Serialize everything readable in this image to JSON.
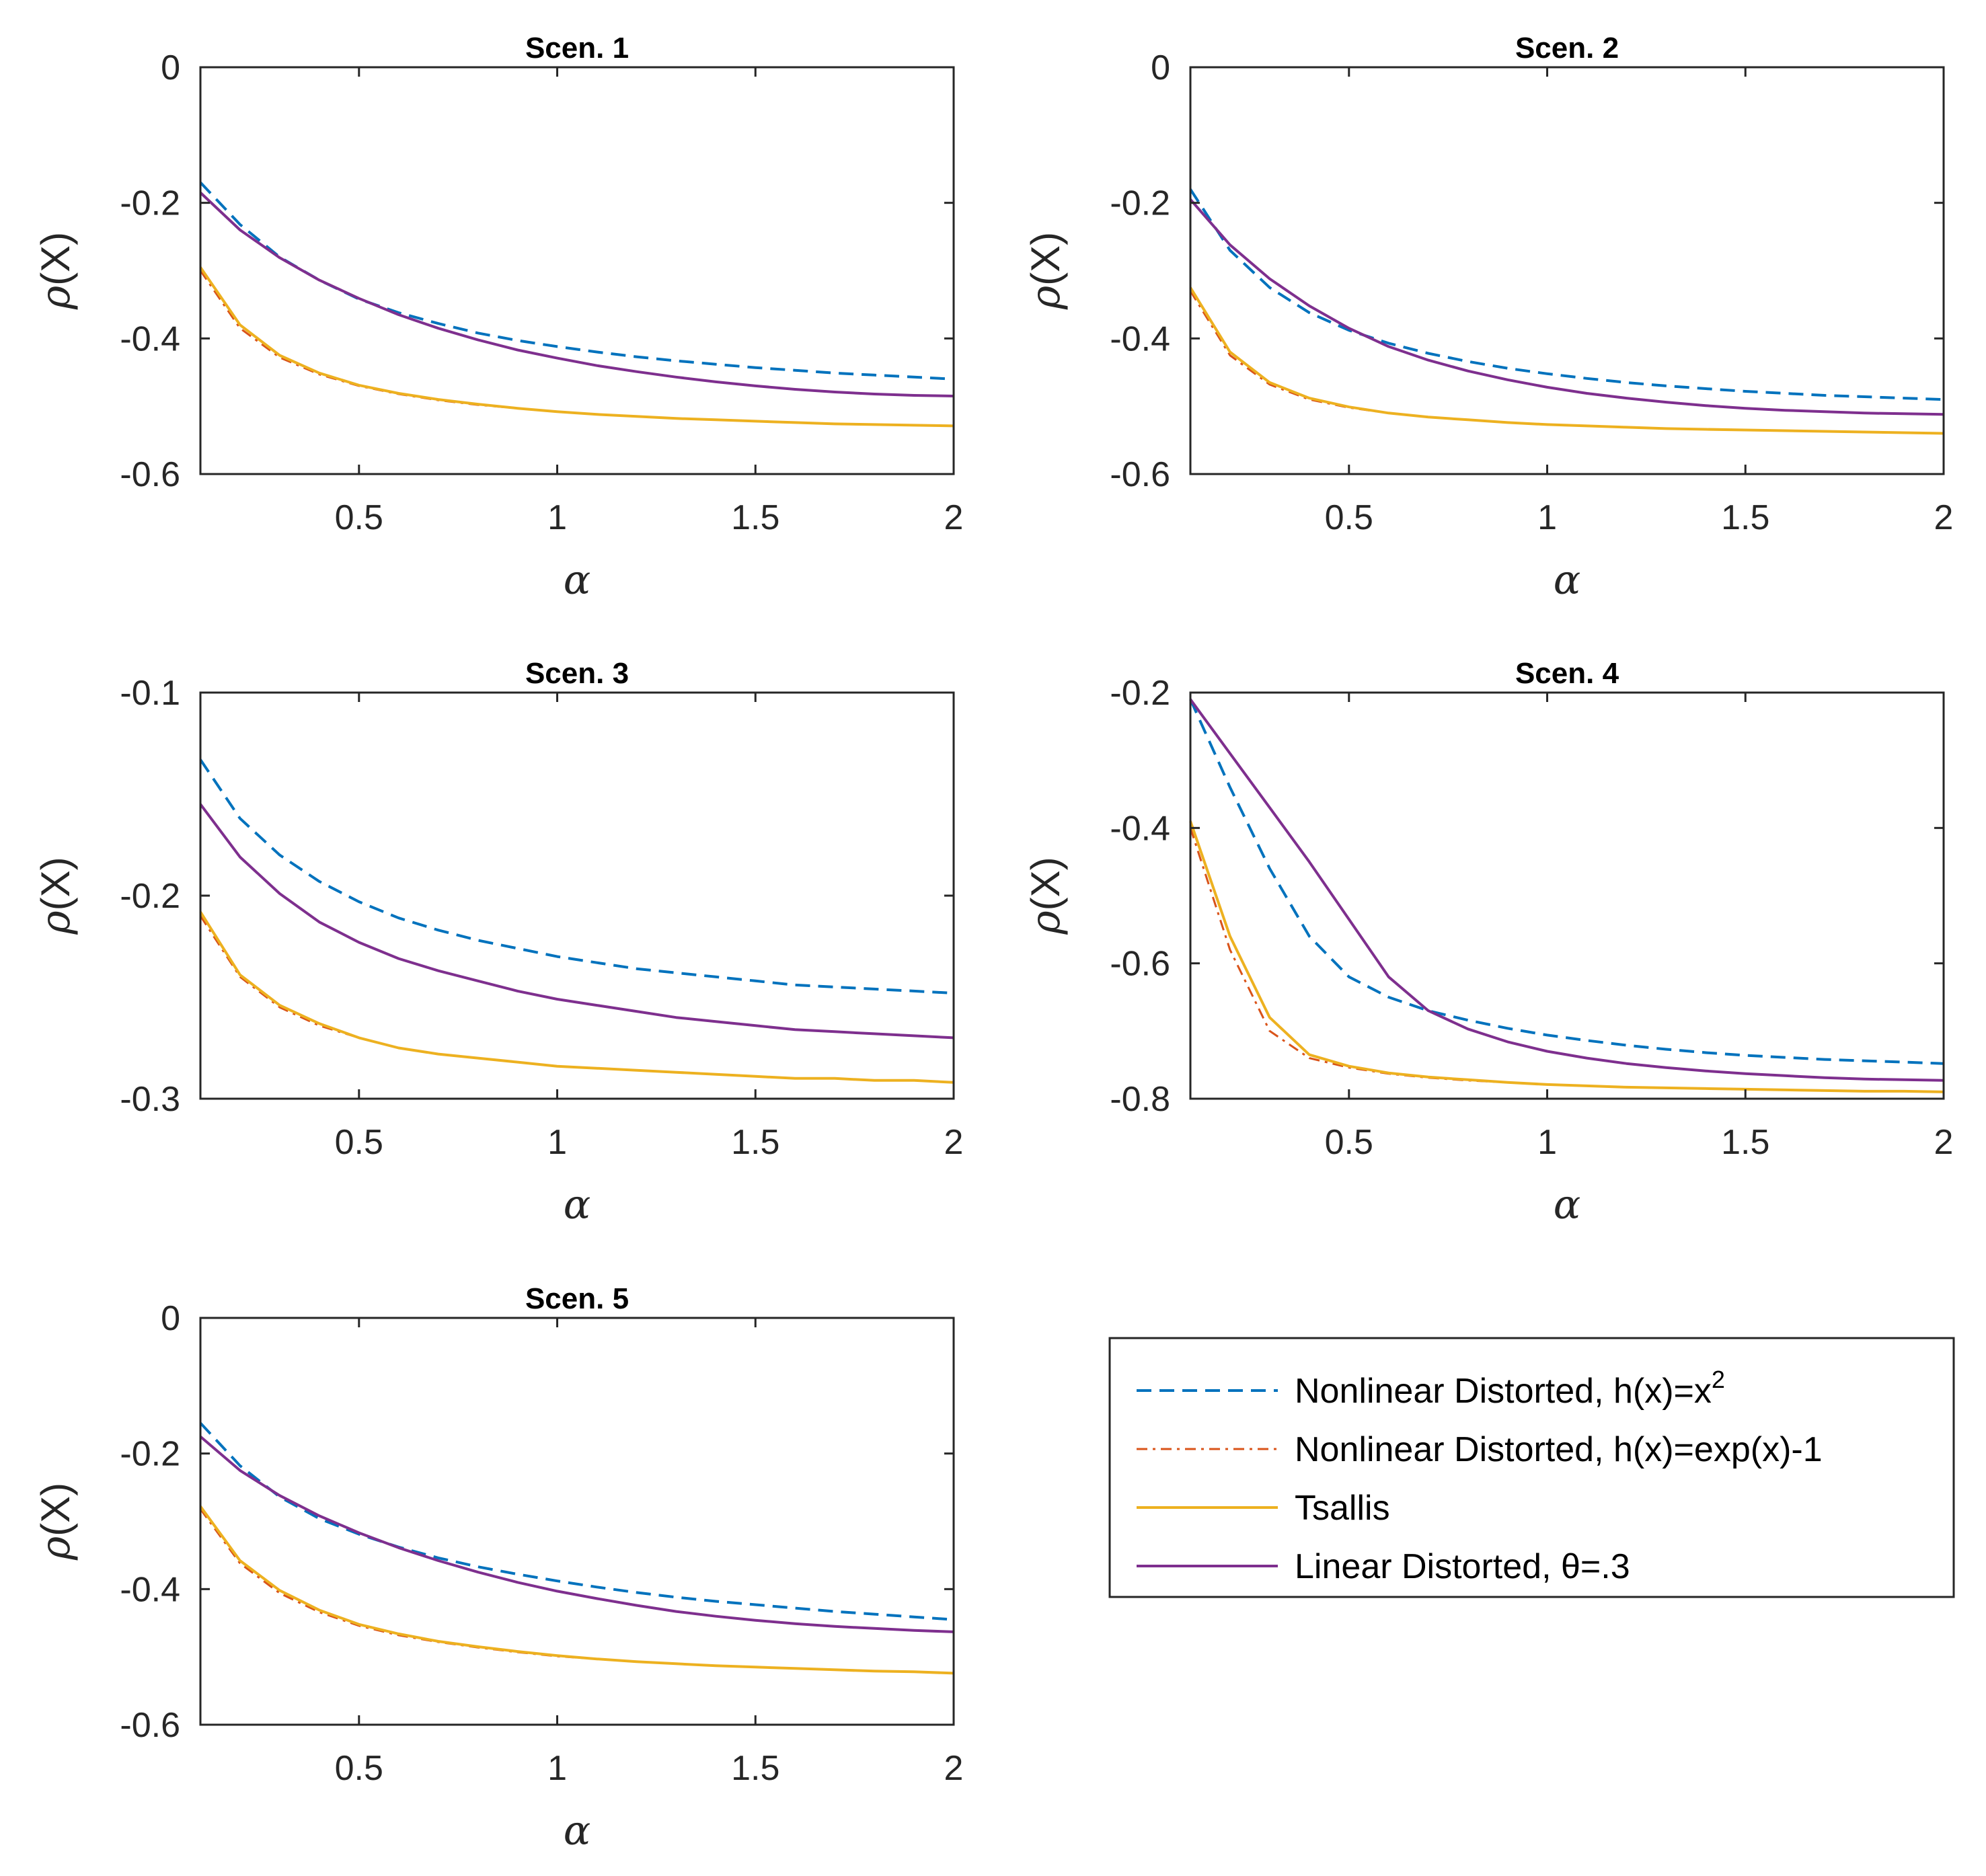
{
  "chart_data": {
    "type": "line",
    "xlabel": "α",
    "ylabel_prefix": "ρ",
    "ylabel_suffix": "(X)",
    "x": [
      0.1,
      0.2,
      0.3,
      0.4,
      0.5,
      0.6,
      0.7,
      0.8,
      0.9,
      1.0,
      1.1,
      1.2,
      1.3,
      1.4,
      1.5,
      1.6,
      1.7,
      1.8,
      1.9,
      2.0
    ],
    "x_ticks": [
      0.5,
      1,
      1.5,
      2
    ],
    "x_tick_labels": [
      "0.5",
      "1",
      "1.5",
      "2"
    ],
    "xlim": [
      0.1,
      2.0
    ],
    "legend": {
      "placement": "bottom-right",
      "entries": [
        {
          "key": "nl_sq",
          "text": "Nonlinear Distorted, h(x)=x",
          "superscript": "2",
          "color": "#0072BD",
          "style": "dashed"
        },
        {
          "key": "nl_exp",
          "text": "Nonlinear Distorted, h(x)=exp(x)-1",
          "superscript": "",
          "color": "#D95319",
          "style": "dashdot"
        },
        {
          "key": "tsallis",
          "text": "Tsallis",
          "superscript": "",
          "color": "#EDB120",
          "style": "solid"
        },
        {
          "key": "lin",
          "text": "Linear Distorted, θ=.3",
          "superscript": "",
          "color": "#7E2F8E",
          "style": "solid"
        }
      ]
    },
    "subplots": [
      {
        "title": "Scen. 1",
        "ylim": [
          -0.6,
          0
        ],
        "y_ticks": [
          -0.6,
          -0.4,
          -0.2,
          0
        ],
        "y_tick_labels": [
          "-0.6",
          "-0.4",
          "-0.2",
          "0"
        ],
        "series": [
          {
            "name": "nl_sq",
            "values": [
              -0.17,
              -0.232,
              -0.28,
              -0.314,
              -0.342,
              -0.362,
              -0.378,
              -0.392,
              -0.403,
              -0.412,
              -0.42,
              -0.427,
              -0.433,
              -0.438,
              -0.443,
              -0.447,
              -0.451,
              -0.454,
              -0.457,
              -0.46
            ]
          },
          {
            "name": "nl_exp",
            "values": [
              -0.3,
              -0.385,
              -0.428,
              -0.453,
              -0.47,
              -0.482,
              -0.491,
              -0.498,
              -0.503,
              -0.508,
              -0.512,
              -0.515,
              -0.518,
              -0.52,
              -0.522,
              -0.524,
              -0.526,
              -0.527,
              -0.528,
              -0.529
            ]
          },
          {
            "name": "tsallis",
            "values": [
              -0.295,
              -0.38,
              -0.425,
              -0.451,
              -0.469,
              -0.481,
              -0.49,
              -0.497,
              -0.503,
              -0.508,
              -0.512,
              -0.515,
              -0.518,
              -0.52,
              -0.522,
              -0.524,
              -0.526,
              -0.527,
              -0.528,
              -0.529
            ]
          },
          {
            "name": "lin",
            "values": [
              -0.185,
              -0.24,
              -0.281,
              -0.314,
              -0.341,
              -0.365,
              -0.385,
              -0.402,
              -0.417,
              -0.429,
              -0.44,
              -0.449,
              -0.457,
              -0.464,
              -0.47,
              -0.475,
              -0.479,
              -0.482,
              -0.484,
              -0.485
            ]
          }
        ]
      },
      {
        "title": "Scen. 2",
        "ylim": [
          -0.6,
          0
        ],
        "y_ticks": [
          -0.6,
          -0.4,
          -0.2,
          0
        ],
        "y_tick_labels": [
          "-0.6",
          "-0.4",
          "-0.2",
          "0"
        ],
        "series": [
          {
            "name": "nl_sq",
            "values": [
              -0.18,
              -0.27,
              -0.325,
              -0.362,
              -0.388,
              -0.407,
              -0.422,
              -0.434,
              -0.444,
              -0.452,
              -0.459,
              -0.465,
              -0.47,
              -0.474,
              -0.478,
              -0.481,
              -0.484,
              -0.486,
              -0.488,
              -0.49
            ]
          },
          {
            "name": "nl_exp",
            "values": [
              -0.33,
              -0.425,
              -0.468,
              -0.49,
              -0.502,
              -0.51,
              -0.516,
              -0.52,
              -0.524,
              -0.527,
              -0.529,
              -0.531,
              -0.533,
              -0.534,
              -0.535,
              -0.536,
              -0.537,
              -0.538,
              -0.539,
              -0.54
            ]
          },
          {
            "name": "tsallis",
            "values": [
              -0.325,
              -0.42,
              -0.465,
              -0.488,
              -0.501,
              -0.51,
              -0.516,
              -0.52,
              -0.524,
              -0.527,
              -0.529,
              -0.531,
              -0.533,
              -0.534,
              -0.535,
              -0.536,
              -0.537,
              -0.538,
              -0.539,
              -0.54
            ]
          },
          {
            "name": "lin",
            "values": [
              -0.195,
              -0.262,
              -0.312,
              -0.352,
              -0.385,
              -0.412,
              -0.432,
              -0.448,
              -0.461,
              -0.472,
              -0.481,
              -0.488,
              -0.494,
              -0.499,
              -0.503,
              -0.506,
              -0.508,
              -0.51,
              -0.511,
              -0.512
            ]
          }
        ]
      },
      {
        "title": "Scen. 3",
        "ylim": [
          -0.3,
          -0.1
        ],
        "y_ticks": [
          -0.3,
          -0.2,
          -0.1
        ],
        "y_tick_labels": [
          "-0.3",
          "-0.2",
          "-0.1"
        ],
        "series": [
          {
            "name": "nl_sq",
            "values": [
              -0.133,
              -0.162,
              -0.18,
              -0.193,
              -0.203,
              -0.211,
              -0.217,
              -0.222,
              -0.226,
              -0.23,
              -0.233,
              -0.236,
              -0.238,
              -0.24,
              -0.242,
              -0.244,
              -0.245,
              -0.246,
              -0.247,
              -0.248
            ]
          },
          {
            "name": "nl_exp",
            "values": [
              -0.21,
              -0.24,
              -0.255,
              -0.264,
              -0.27,
              -0.275,
              -0.278,
              -0.28,
              -0.282,
              -0.284,
              -0.285,
              -0.286,
              -0.287,
              -0.288,
              -0.289,
              -0.29,
              -0.29,
              -0.291,
              -0.291,
              -0.292
            ]
          },
          {
            "name": "tsallis",
            "values": [
              -0.208,
              -0.239,
              -0.254,
              -0.263,
              -0.27,
              -0.275,
              -0.278,
              -0.28,
              -0.282,
              -0.284,
              -0.285,
              -0.286,
              -0.287,
              -0.288,
              -0.289,
              -0.29,
              -0.29,
              -0.291,
              -0.291,
              -0.292
            ]
          },
          {
            "name": "lin",
            "values": [
              -0.155,
              -0.181,
              -0.199,
              -0.213,
              -0.223,
              -0.231,
              -0.237,
              -0.242,
              -0.247,
              -0.251,
              -0.254,
              -0.257,
              -0.26,
              -0.262,
              -0.264,
              -0.266,
              -0.267,
              -0.268,
              -0.269,
              -0.27
            ]
          }
        ]
      },
      {
        "title": "Scen. 4",
        "ylim": [
          -0.8,
          -0.2
        ],
        "y_ticks": [
          -0.8,
          -0.6,
          -0.4,
          -0.2
        ],
        "y_tick_labels": [
          "-0.8",
          "-0.6",
          "-0.4",
          "-0.2"
        ],
        "series": [
          {
            "name": "nl_sq",
            "values": [
              -0.21,
              -0.34,
              -0.46,
              -0.56,
              -0.62,
              -0.65,
              -0.67,
              -0.684,
              -0.696,
              -0.706,
              -0.714,
              -0.721,
              -0.727,
              -0.732,
              -0.736,
              -0.739,
              -0.742,
              -0.744,
              -0.746,
              -0.748
            ]
          },
          {
            "name": "nl_exp",
            "values": [
              -0.4,
              -0.58,
              -0.7,
              -0.74,
              -0.754,
              -0.763,
              -0.769,
              -0.773,
              -0.776,
              -0.779,
              -0.781,
              -0.783,
              -0.784,
              -0.785,
              -0.786,
              -0.787,
              -0.788,
              -0.789,
              -0.789,
              -0.79
            ]
          },
          {
            "name": "tsallis",
            "values": [
              -0.39,
              -0.56,
              -0.68,
              -0.735,
              -0.752,
              -0.762,
              -0.768,
              -0.772,
              -0.776,
              -0.779,
              -0.781,
              -0.783,
              -0.784,
              -0.785,
              -0.786,
              -0.787,
              -0.788,
              -0.789,
              -0.789,
              -0.79
            ]
          },
          {
            "name": "lin",
            "values": [
              -0.21,
              -0.29,
              -0.37,
              -0.45,
              -0.535,
              -0.62,
              -0.67,
              -0.697,
              -0.716,
              -0.73,
              -0.74,
              -0.748,
              -0.754,
              -0.759,
              -0.763,
              -0.766,
              -0.769,
              -0.771,
              -0.772,
              -0.773
            ]
          }
        ]
      },
      {
        "title": "Scen. 5",
        "ylim": [
          -0.6,
          0
        ],
        "y_ticks": [
          -0.6,
          -0.4,
          -0.2,
          0
        ],
        "y_tick_labels": [
          "-0.6",
          "-0.4",
          "-0.2",
          "0"
        ],
        "series": [
          {
            "name": "nl_sq",
            "values": [
              -0.155,
              -0.218,
              -0.264,
              -0.296,
              -0.319,
              -0.338,
              -0.354,
              -0.367,
              -0.378,
              -0.388,
              -0.397,
              -0.405,
              -0.412,
              -0.418,
              -0.423,
              -0.428,
              -0.433,
              -0.437,
              -0.441,
              -0.445
            ]
          },
          {
            "name": "nl_exp",
            "values": [
              -0.282,
              -0.362,
              -0.406,
              -0.434,
              -0.454,
              -0.468,
              -0.478,
              -0.486,
              -0.493,
              -0.499,
              -0.503,
              -0.507,
              -0.51,
              -0.513,
              -0.515,
              -0.517,
              -0.519,
              -0.521,
              -0.522,
              -0.524
            ]
          },
          {
            "name": "tsallis",
            "values": [
              -0.278,
              -0.358,
              -0.402,
              -0.431,
              -0.452,
              -0.466,
              -0.477,
              -0.485,
              -0.492,
              -0.498,
              -0.503,
              -0.507,
              -0.51,
              -0.513,
              -0.515,
              -0.517,
              -0.519,
              -0.521,
              -0.522,
              -0.524
            ]
          },
          {
            "name": "lin",
            "values": [
              -0.175,
              -0.225,
              -0.262,
              -0.292,
              -0.317,
              -0.339,
              -0.358,
              -0.375,
              -0.39,
              -0.403,
              -0.414,
              -0.424,
              -0.433,
              -0.44,
              -0.446,
              -0.451,
              -0.455,
              -0.458,
              -0.461,
              -0.463
            ]
          }
        ]
      }
    ]
  }
}
